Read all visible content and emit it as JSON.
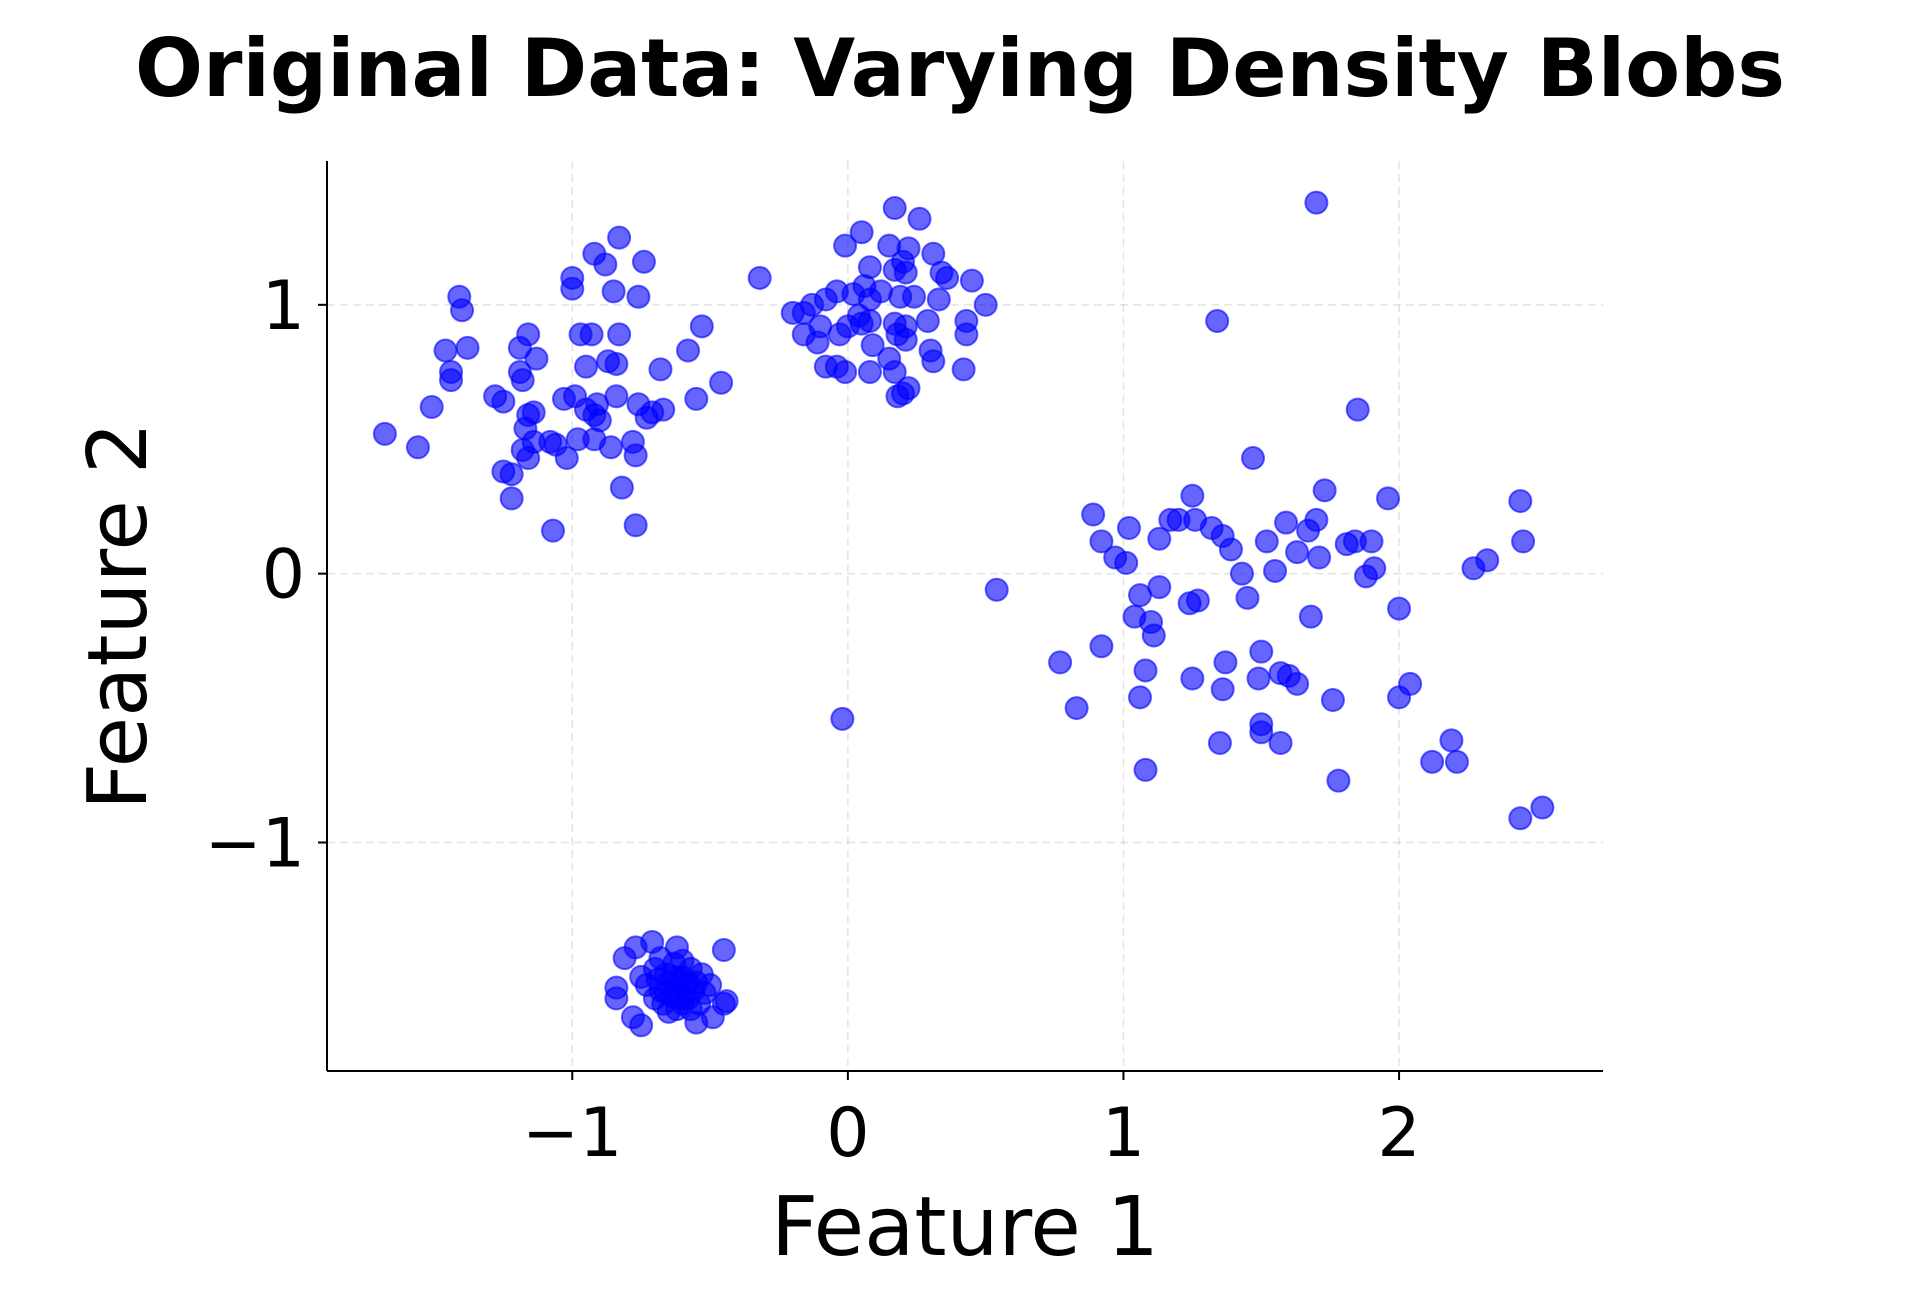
{
  "chart_data": {
    "type": "scatter",
    "title": "Original Data: Varying Density Blobs",
    "xlabel": "Feature 1",
    "ylabel": "Feature 2",
    "xlim": [
      -1.89,
      2.74
    ],
    "ylim": [
      -1.85,
      1.535
    ],
    "xticks": [
      -1,
      0,
      1,
      2
    ],
    "yticks": [
      -1,
      0,
      1
    ],
    "xtick_labels": [
      "−1",
      "0",
      "1",
      "2"
    ],
    "ytick_labels": [
      "−1",
      "0",
      "1"
    ],
    "grid": true,
    "grid_style": "dashed",
    "marker_color": "#0000ff",
    "marker_alpha": 0.6,
    "points": [
      [
        1.7,
        1.38
      ],
      [
        1.34,
        0.94
      ],
      [
        1.85,
        0.61
      ],
      [
        1.47,
        0.43
      ],
      [
        1.73,
        0.31
      ],
      [
        1.25,
        0.29
      ],
      [
        1.96,
        0.28
      ],
      [
        2.44,
        0.27
      ],
      [
        0.89,
        0.22
      ],
      [
        1.17,
        0.2
      ],
      [
        1.2,
        0.2
      ],
      [
        1.26,
        0.2
      ],
      [
        1.7,
        0.2
      ],
      [
        1.59,
        0.19
      ],
      [
        1.02,
        0.17
      ],
      [
        1.32,
        0.17
      ],
      [
        1.67,
        0.16
      ],
      [
        1.36,
        0.14
      ],
      [
        1.13,
        0.13
      ],
      [
        1.52,
        0.12
      ],
      [
        0.92,
        0.12
      ],
      [
        1.81,
        0.11
      ],
      [
        1.9,
        0.12
      ],
      [
        1.84,
        0.12
      ],
      [
        1.39,
        0.09
      ],
      [
        2.45,
        0.12
      ],
      [
        1.63,
        0.08
      ],
      [
        1.71,
        0.06
      ],
      [
        0.97,
        0.06
      ],
      [
        1.01,
        0.04
      ],
      [
        2.32,
        0.05
      ],
      [
        2.27,
        0.02
      ],
      [
        1.91,
        0.02
      ],
      [
        1.55,
        0.01
      ],
      [
        1.43,
        0.0
      ],
      [
        1.88,
        -0.01
      ],
      [
        0.54,
        -0.06
      ],
      [
        1.13,
        -0.05
      ],
      [
        1.06,
        -0.08
      ],
      [
        1.45,
        -0.09
      ],
      [
        1.27,
        -0.1
      ],
      [
        1.24,
        -0.11
      ],
      [
        2.0,
        -0.13
      ],
      [
        1.04,
        -0.16
      ],
      [
        1.68,
        -0.16
      ],
      [
        1.1,
        -0.18
      ],
      [
        1.11,
        -0.23
      ],
      [
        0.92,
        -0.27
      ],
      [
        1.5,
        -0.29
      ],
      [
        0.77,
        -0.33
      ],
      [
        1.37,
        -0.33
      ],
      [
        1.08,
        -0.36
      ],
      [
        1.49,
        -0.39
      ],
      [
        1.25,
        -0.39
      ],
      [
        1.57,
        -0.37
      ],
      [
        1.6,
        -0.38
      ],
      [
        1.63,
        -0.41
      ],
      [
        1.36,
        -0.43
      ],
      [
        2.04,
        -0.41
      ],
      [
        1.06,
        -0.46
      ],
      [
        2.0,
        -0.46
      ],
      [
        1.76,
        -0.47
      ],
      [
        0.83,
        -0.5
      ],
      [
        -0.02,
        -0.54
      ],
      [
        1.5,
        -0.56
      ],
      [
        1.5,
        -0.59
      ],
      [
        1.35,
        -0.63
      ],
      [
        1.57,
        -0.63
      ],
      [
        2.19,
        -0.62
      ],
      [
        2.12,
        -0.7
      ],
      [
        2.21,
        -0.7
      ],
      [
        1.08,
        -0.73
      ],
      [
        1.78,
        -0.77
      ],
      [
        2.52,
        -0.87
      ],
      [
        2.44,
        -0.91
      ],
      [
        -1.68,
        0.52
      ],
      [
        -1.56,
        0.47
      ],
      [
        -1.51,
        0.62
      ],
      [
        -1.44,
        0.75
      ],
      [
        -1.44,
        0.72
      ],
      [
        -1.46,
        0.83
      ],
      [
        -1.38,
        0.84
      ],
      [
        -1.41,
        1.03
      ],
      [
        -1.4,
        0.98
      ],
      [
        -1.28,
        0.66
      ],
      [
        -1.25,
        0.64
      ],
      [
        -1.25,
        0.38
      ],
      [
        -1.22,
        0.37
      ],
      [
        -1.22,
        0.28
      ],
      [
        -1.07,
        0.16
      ],
      [
        -1.19,
        0.75
      ],
      [
        -1.18,
        0.72
      ],
      [
        -1.19,
        0.84
      ],
      [
        -1.16,
        0.89
      ],
      [
        -1.13,
        0.8
      ],
      [
        -1.16,
        0.59
      ],
      [
        -1.14,
        0.6
      ],
      [
        -1.17,
        0.54
      ],
      [
        -1.18,
        0.46
      ],
      [
        -1.16,
        0.43
      ],
      [
        -1.14,
        0.49
      ],
      [
        -1.08,
        0.49
      ],
      [
        -1.06,
        0.48
      ],
      [
        -1.02,
        0.43
      ],
      [
        -1.03,
        0.65
      ],
      [
        -0.99,
        0.66
      ],
      [
        -0.98,
        0.5
      ],
      [
        -0.95,
        0.61
      ],
      [
        -0.92,
        0.59
      ],
      [
        -0.91,
        0.63
      ],
      [
        -0.9,
        0.57
      ],
      [
        -0.92,
        0.5
      ],
      [
        -0.86,
        0.47
      ],
      [
        -0.84,
        0.66
      ],
      [
        -0.95,
        0.77
      ],
      [
        -0.87,
        0.79
      ],
      [
        -0.84,
        0.78
      ],
      [
        -0.97,
        0.89
      ],
      [
        -0.93,
        0.89
      ],
      [
        -0.83,
        0.89
      ],
      [
        -1.0,
        1.06
      ],
      [
        -1.0,
        1.1
      ],
      [
        -0.92,
        1.19
      ],
      [
        -0.88,
        1.15
      ],
      [
        -0.83,
        1.25
      ],
      [
        -0.74,
        1.16
      ],
      [
        -0.85,
        1.05
      ],
      [
        -0.76,
        1.03
      ],
      [
        -0.82,
        0.32
      ],
      [
        -0.77,
        0.18
      ],
      [
        -0.78,
        0.49
      ],
      [
        -0.77,
        0.44
      ],
      [
        -0.76,
        0.63
      ],
      [
        -0.73,
        0.58
      ],
      [
        -0.71,
        0.6
      ],
      [
        -0.67,
        0.61
      ],
      [
        -0.68,
        0.76
      ],
      [
        -0.55,
        0.65
      ],
      [
        -0.58,
        0.83
      ],
      [
        -0.53,
        0.92
      ],
      [
        -0.46,
        0.71
      ],
      [
        -0.32,
        1.1
      ],
      [
        0.17,
        1.36
      ],
      [
        0.26,
        1.32
      ],
      [
        0.05,
        1.27
      ],
      [
        -0.01,
        1.22
      ],
      [
        0.15,
        1.22
      ],
      [
        0.22,
        1.21
      ],
      [
        0.31,
        1.19
      ],
      [
        0.2,
        1.16
      ],
      [
        0.08,
        1.14
      ],
      [
        0.17,
        1.13
      ],
      [
        0.21,
        1.12
      ],
      [
        0.34,
        1.12
      ],
      [
        0.36,
        1.1
      ],
      [
        0.45,
        1.09
      ],
      [
        0.06,
        1.07
      ],
      [
        0.12,
        1.05
      ],
      [
        -0.04,
        1.05
      ],
      [
        -0.08,
        1.02
      ],
      [
        0.02,
        1.04
      ],
      [
        0.08,
        1.02
      ],
      [
        0.19,
        1.03
      ],
      [
        0.24,
        1.03
      ],
      [
        0.33,
        1.02
      ],
      [
        0.5,
        1.0
      ],
      [
        -0.13,
        1.0
      ],
      [
        -0.16,
        0.97
      ],
      [
        -0.2,
        0.97
      ],
      [
        0.04,
        0.96
      ],
      [
        0.08,
        0.94
      ],
      [
        0.43,
        0.94
      ],
      [
        -0.1,
        0.92
      ],
      [
        0.0,
        0.92
      ],
      [
        0.05,
        0.93
      ],
      [
        0.17,
        0.93
      ],
      [
        0.21,
        0.92
      ],
      [
        0.29,
        0.94
      ],
      [
        -0.16,
        0.89
      ],
      [
        -0.03,
        0.89
      ],
      [
        0.18,
        0.89
      ],
      [
        0.43,
        0.89
      ],
      [
        -0.11,
        0.86
      ],
      [
        0.09,
        0.85
      ],
      [
        0.21,
        0.87
      ],
      [
        0.3,
        0.83
      ],
      [
        0.15,
        0.8
      ],
      [
        0.31,
        0.79
      ],
      [
        -0.08,
        0.77
      ],
      [
        -0.04,
        0.77
      ],
      [
        -0.01,
        0.75
      ],
      [
        0.08,
        0.75
      ],
      [
        0.17,
        0.75
      ],
      [
        0.42,
        0.76
      ],
      [
        0.18,
        0.66
      ],
      [
        0.2,
        0.67
      ],
      [
        0.22,
        0.69
      ],
      [
        -0.71,
        -1.37
      ],
      [
        -0.81,
        -1.43
      ],
      [
        -0.77,
        -1.39
      ],
      [
        -0.62,
        -1.39
      ],
      [
        -0.45,
        -1.4
      ],
      [
        -0.84,
        -1.54
      ],
      [
        -0.84,
        -1.58
      ],
      [
        -0.75,
        -1.68
      ],
      [
        -0.78,
        -1.65
      ],
      [
        -0.55,
        -1.67
      ],
      [
        -0.49,
        -1.65
      ],
      [
        -0.44,
        -1.59
      ],
      [
        -0.45,
        -1.6
      ],
      [
        -0.65,
        -1.52
      ],
      [
        -0.6,
        -1.5
      ],
      [
        -0.62,
        -1.55
      ],
      [
        -0.58,
        -1.58
      ],
      [
        -0.67,
        -1.6
      ],
      [
        -0.55,
        -1.52
      ],
      [
        -0.7,
        -1.47
      ],
      [
        -0.63,
        -1.45
      ],
      [
        -0.57,
        -1.47
      ],
      [
        -0.68,
        -1.55
      ],
      [
        -0.6,
        -1.6
      ],
      [
        -0.52,
        -1.56
      ],
      [
        -0.73,
        -1.53
      ],
      [
        -0.66,
        -1.49
      ],
      [
        -0.59,
        -1.53
      ],
      [
        -0.62,
        -1.62
      ],
      [
        -0.54,
        -1.6
      ],
      [
        -0.7,
        -1.58
      ],
      [
        -0.64,
        -1.57
      ],
      [
        -0.61,
        -1.51
      ],
      [
        -0.56,
        -1.55
      ],
      [
        -0.75,
        -1.5
      ],
      [
        -0.68,
        -1.43
      ],
      [
        -0.6,
        -1.44
      ],
      [
        -0.5,
        -1.53
      ],
      [
        -0.65,
        -1.63
      ],
      [
        -0.63,
        -1.5
      ],
      [
        -0.58,
        -1.52
      ],
      [
        -0.66,
        -1.56
      ],
      [
        -0.61,
        -1.58
      ],
      [
        -0.69,
        -1.51
      ],
      [
        -0.57,
        -1.62
      ],
      [
        -0.53,
        -1.49
      ]
    ]
  }
}
